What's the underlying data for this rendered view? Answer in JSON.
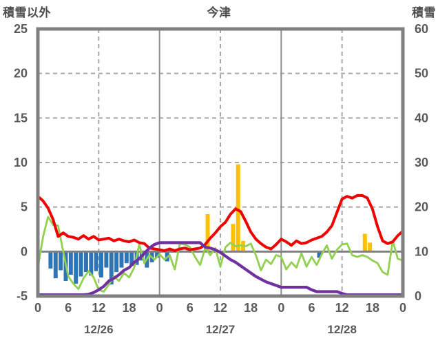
{
  "header": {
    "left_axis_title": "積雪以外",
    "station_title": "今津",
    "right_axis_title": "積雪"
  },
  "chart_data": {
    "type": "line",
    "title": "今津",
    "left_axis": {
      "label": "積雪以外",
      "min": -5,
      "max": 25,
      "ticks": [
        25,
        20,
        15,
        10,
        5,
        0,
        -5
      ]
    },
    "right_axis": {
      "label": "積雪",
      "min": 0,
      "max": 60,
      "ticks": [
        60,
        50,
        40,
        30,
        20,
        10,
        0
      ]
    },
    "x_axis": {
      "hours_total": 72,
      "tick_step_hours": 6,
      "tick_labels": [
        "0",
        "6",
        "12",
        "18",
        "0",
        "6",
        "12",
        "18",
        "0",
        "6",
        "12",
        "18",
        "0"
      ],
      "date_labels": [
        "12/26",
        "12/27",
        "12/28"
      ],
      "date_center_hours": [
        12,
        36,
        60
      ]
    },
    "grid": {
      "h_dashed_at": [
        5,
        10,
        15,
        20
      ],
      "v_solid_at_hours": [
        24,
        48
      ],
      "v_dashed_at_hours": [
        12,
        36,
        60
      ],
      "zero_line_at": 0
    },
    "colors": {
      "red": "#f00000",
      "green": "#92d050",
      "purple": "#7030a0",
      "blue": "#2e75b6",
      "orange": "#ffc000",
      "axis_gray": "#808080",
      "grid_gray": "#a6a6a6",
      "text_gray": "#595959"
    },
    "series": [
      {
        "name": "red-line",
        "axis": "left",
        "color": "#f00000",
        "values": [
          6.2,
          5.7,
          4.9,
          3.6,
          1.7,
          2.1,
          1.7,
          1.6,
          1.4,
          1.8,
          1.4,
          1.7,
          1.3,
          1.4,
          1.5,
          1.2,
          1.4,
          1.2,
          1.1,
          1.3,
          1.0,
          0.9,
          0.4,
          0.3,
          0.2,
          0.1,
          0.3,
          0.1,
          0.3,
          0.4,
          0.2,
          0.3,
          0.4,
          0.8,
          1.5,
          2.1,
          2.8,
          3.3,
          4.2,
          4.8,
          4.5,
          3.4,
          2.2,
          1.4,
          0.9,
          0.5,
          0.3,
          0.8,
          1.4,
          1.1,
          0.7,
          1.2,
          0.9,
          1.0,
          1.3,
          1.5,
          1.7,
          2.2,
          2.9,
          4.4,
          5.9,
          6.2,
          6.0,
          6.3,
          6.3,
          6.0,
          4.8,
          2.8,
          1.2,
          0.9,
          1.1,
          1.8,
          2.3
        ]
      },
      {
        "name": "green-line",
        "axis": "left",
        "color": "#92d050",
        "values": [
          -1.8,
          1.6,
          3.9,
          3.0,
          2.9,
          0.0,
          -2.8,
          -3.6,
          -4.2,
          -3.0,
          -2.2,
          -2.9,
          -4.3,
          -4.5,
          -3.7,
          -2.8,
          -3.3,
          -2.4,
          -2.9,
          -1.8,
          0.8,
          -1.3,
          -0.4,
          -0.9,
          -0.3,
          -0.9,
          -0.4,
          -2.0,
          0.9,
          0.8,
          0.5,
          -0.6,
          -1.5,
          0.4,
          -0.4,
          0.4,
          -1.7,
          0.5,
          1.0,
          0.6,
          0.7,
          0.6,
          0.9,
          -0.4,
          -2.1,
          -0.9,
          -1.4,
          -0.4,
          -0.6,
          -2.0,
          -1.2,
          -1.8,
          -0.2,
          -1.7,
          -0.6,
          -1.5,
          -0.3,
          0.7,
          -0.8,
          0.2,
          0.8,
          0.9,
          -0.4,
          -0.6,
          -0.4,
          -0.6,
          -1.0,
          -1.3,
          -2.3,
          -2.6,
          1.2,
          -0.8,
          -1.0
        ]
      },
      {
        "name": "purple-snow-depth-line",
        "axis": "right",
        "color": "#7030a0",
        "values": [
          0.3,
          0.3,
          0.3,
          0.3,
          0.3,
          0.3,
          0.3,
          0.3,
          0.3,
          0.3,
          0.4,
          0.8,
          1.4,
          2.2,
          3.4,
          4.0,
          4.8,
          5.8,
          6.4,
          7.6,
          8.4,
          9.6,
          10.8,
          11.6,
          12,
          12,
          12,
          12,
          12,
          12,
          12,
          12,
          12,
          11,
          10.8,
          10.4,
          9.8,
          9.0,
          8.2,
          7.6,
          6.8,
          6.0,
          5.2,
          4.4,
          3.8,
          3.2,
          2.8,
          2.4,
          2,
          2,
          2,
          2,
          2,
          2,
          1.4,
          1,
          1,
          1,
          1,
          1,
          0.6,
          0.3,
          0.3,
          0.3,
          0.3,
          0.3,
          0.3,
          0.3,
          0.3,
          0.3,
          0.3,
          0.3,
          0.3
        ]
      }
    ],
    "bars": [
      {
        "name": "blue-bars",
        "axis": "left",
        "color": "#2e75b6",
        "points": [
          [
            2,
            -1.9
          ],
          [
            3,
            -3.0
          ],
          [
            4,
            -2.1
          ],
          [
            5,
            -3.3
          ],
          [
            6,
            -2.6
          ],
          [
            7,
            -3.6
          ],
          [
            8,
            -2.8
          ],
          [
            9,
            -2.3
          ],
          [
            10,
            -2.7
          ],
          [
            11,
            -2.2
          ],
          [
            12,
            -2.9
          ],
          [
            13,
            -1.8
          ],
          [
            14,
            -3.7
          ],
          [
            15,
            -2.3
          ],
          [
            16,
            -1.8
          ],
          [
            17,
            -1.3
          ],
          [
            18,
            -1.6
          ],
          [
            19,
            -1.5
          ],
          [
            20,
            -1.0
          ],
          [
            21,
            -1.8
          ],
          [
            22,
            -1.2
          ],
          [
            23,
            -0.7
          ],
          [
            25,
            -1.1
          ],
          [
            55,
            -0.7
          ]
        ]
      },
      {
        "name": "orange-bars",
        "axis": "left",
        "color": "#ffc000",
        "points": [
          [
            33,
            4.2
          ],
          [
            38,
            3.1
          ],
          [
            39,
            9.8
          ],
          [
            40,
            1.2
          ],
          [
            64,
            2.0
          ],
          [
            65,
            1.0
          ]
        ]
      }
    ]
  }
}
